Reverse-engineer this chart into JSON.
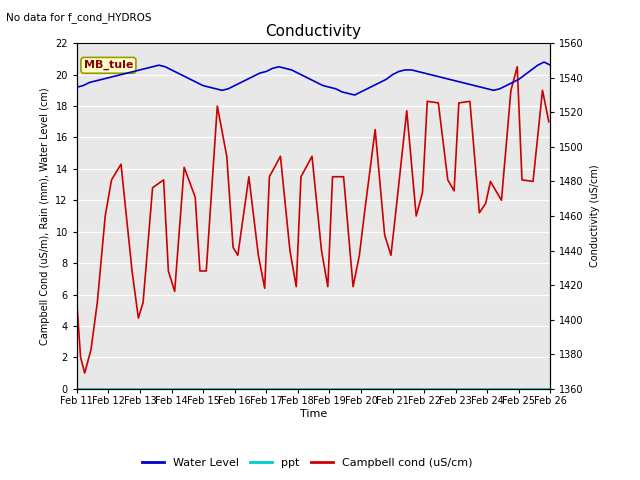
{
  "title": "Conductivity",
  "top_left_text": "No data for f_cond_HYDROS",
  "xlabel": "Time",
  "ylabel_left": "Campbell Cond (uS/m), Rain (mm), Water Level (cm)",
  "ylabel_right": "Conductivity (uS/cm)",
  "xlim": [
    0,
    15
  ],
  "ylim_left": [
    0,
    22
  ],
  "ylim_right": [
    1360,
    1560
  ],
  "x_ticks_labels": [
    "Feb 11",
    "Feb 12",
    "Feb 13",
    "Feb 14",
    "Feb 15",
    "Feb 16",
    "Feb 17",
    "Feb 18",
    "Feb 19",
    "Feb 20",
    "Feb 21",
    "Feb 22",
    "Feb 23",
    "Feb 24",
    "Feb 25",
    "Feb 26"
  ],
  "annotation_box": "MB_tule",
  "bg_color": "#e8e8e8",
  "water_level_color": "#0000cc",
  "ppt_color": "#00cccc",
  "campbell_color": "#cc0000",
  "legend_labels": [
    "Water Level",
    "ppt",
    "Campbell cond (uS/cm)"
  ],
  "water_level_x": [
    0.0,
    0.2,
    0.4,
    0.6,
    0.8,
    1.0,
    1.2,
    1.4,
    1.6,
    1.8,
    2.0,
    2.2,
    2.4,
    2.6,
    2.8,
    3.0,
    3.2,
    3.4,
    3.6,
    3.8,
    4.0,
    4.2,
    4.4,
    4.6,
    4.8,
    5.0,
    5.2,
    5.4,
    5.6,
    5.8,
    6.0,
    6.2,
    6.4,
    6.6,
    6.8,
    7.0,
    7.2,
    7.4,
    7.6,
    7.8,
    8.0,
    8.2,
    8.4,
    8.6,
    8.8,
    9.0,
    9.2,
    9.4,
    9.6,
    9.8,
    10.0,
    10.2,
    10.4,
    10.6,
    10.8,
    11.0,
    11.2,
    11.4,
    11.6,
    11.8,
    12.0,
    12.2,
    12.4,
    12.6,
    12.8,
    13.0,
    13.2,
    13.4,
    13.6,
    13.8,
    14.0,
    14.2,
    14.4,
    14.6,
    14.8,
    15.0
  ],
  "water_level_y": [
    19.2,
    19.3,
    19.5,
    19.6,
    19.7,
    19.8,
    19.9,
    20.0,
    20.1,
    20.2,
    20.3,
    20.4,
    20.5,
    20.6,
    20.5,
    20.3,
    20.1,
    19.9,
    19.7,
    19.5,
    19.3,
    19.2,
    19.1,
    19.0,
    19.1,
    19.3,
    19.5,
    19.7,
    19.9,
    20.1,
    20.2,
    20.4,
    20.5,
    20.4,
    20.3,
    20.1,
    19.9,
    19.7,
    19.5,
    19.3,
    19.2,
    19.1,
    18.9,
    18.8,
    18.7,
    18.9,
    19.1,
    19.3,
    19.5,
    19.7,
    20.0,
    20.2,
    20.3,
    20.3,
    20.2,
    20.1,
    20.0,
    19.9,
    19.8,
    19.7,
    19.6,
    19.5,
    19.4,
    19.3,
    19.2,
    19.1,
    19.0,
    19.1,
    19.3,
    19.5,
    19.7,
    20.0,
    20.3,
    20.6,
    20.8,
    20.6
  ],
  "campbell_x": [
    0.0,
    0.12,
    0.25,
    0.45,
    0.65,
    0.9,
    1.1,
    1.4,
    1.75,
    1.95,
    2.1,
    2.4,
    2.75,
    2.9,
    3.1,
    3.4,
    3.75,
    3.9,
    4.1,
    4.45,
    4.75,
    4.95,
    5.1,
    5.45,
    5.75,
    5.95,
    6.1,
    6.45,
    6.75,
    6.95,
    7.1,
    7.45,
    7.75,
    7.95,
    8.1,
    8.45,
    8.75,
    8.95,
    9.1,
    9.45,
    9.75,
    9.95,
    10.1,
    10.45,
    10.75,
    10.95,
    11.1,
    11.45,
    11.75,
    11.95,
    12.1,
    12.45,
    12.75,
    12.95,
    13.1,
    13.45,
    13.75,
    13.95,
    14.1,
    14.45,
    14.75,
    14.95
  ],
  "campbell_y": [
    5.5,
    2.0,
    1.0,
    2.5,
    5.5,
    11.0,
    13.3,
    14.3,
    7.5,
    4.5,
    5.5,
    12.8,
    13.3,
    7.5,
    6.2,
    14.1,
    12.2,
    7.5,
    7.5,
    18.0,
    14.8,
    9.0,
    8.5,
    13.5,
    8.5,
    6.4,
    13.5,
    14.8,
    8.8,
    6.5,
    13.5,
    14.8,
    8.8,
    6.5,
    13.5,
    13.5,
    6.5,
    8.5,
    11.0,
    16.5,
    9.8,
    8.5,
    11.2,
    17.7,
    11.0,
    12.5,
    18.3,
    18.2,
    13.3,
    12.6,
    18.2,
    18.3,
    11.2,
    11.8,
    13.2,
    12.0,
    19.0,
    20.5,
    13.3,
    13.2,
    19.0,
    17.0
  ],
  "ppt_y": 0.0,
  "title_fontsize": 11,
  "label_fontsize": 7,
  "tick_fontsize": 7,
  "legend_fontsize": 8
}
